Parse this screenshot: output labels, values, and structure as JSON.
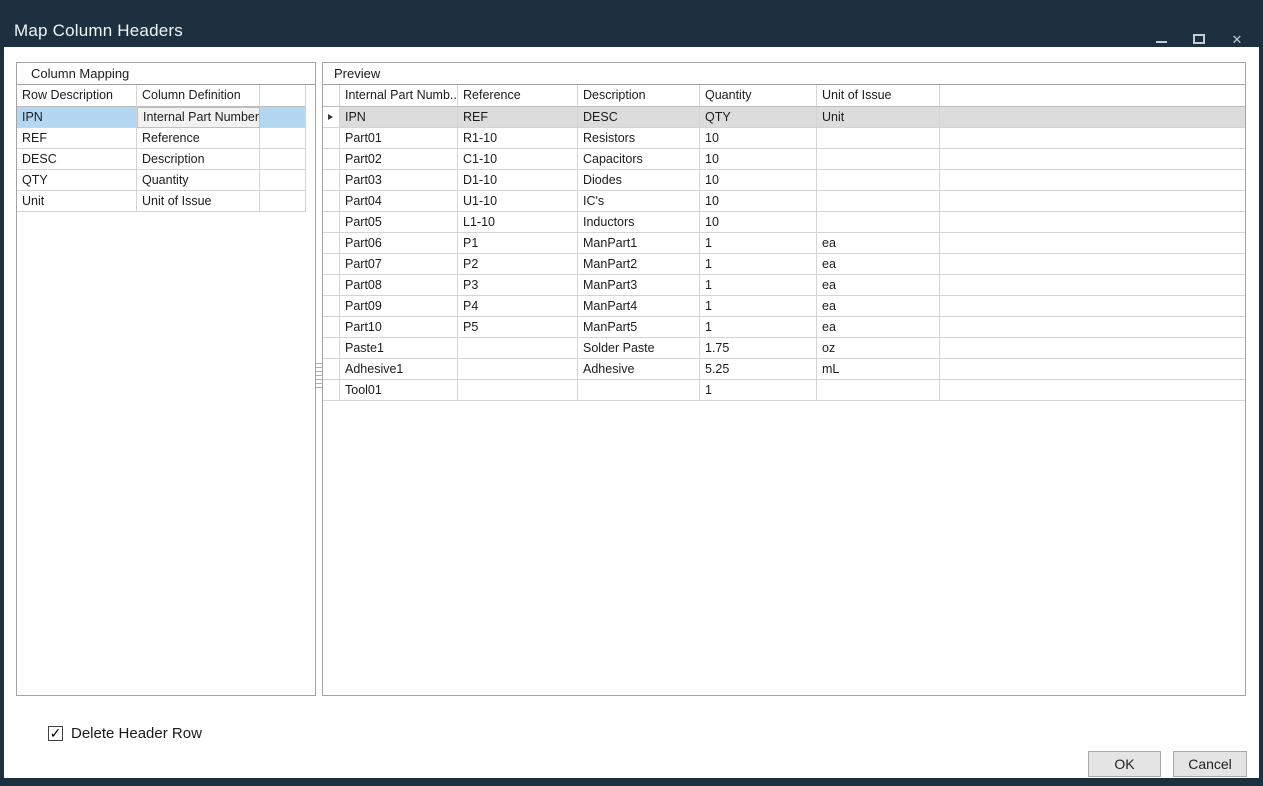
{
  "window": {
    "title": "Map Column Headers"
  },
  "icons": {
    "minimize": "minimize-icon",
    "maximize": "maximize-icon",
    "close": "close-icon",
    "row_current_marker": "row-arrow-icon",
    "checkmark": "checkmark-icon"
  },
  "colors": {
    "titlebar": "#1d303f",
    "title_text": "#f2f4f5",
    "selection_blue": "#b3d7f0",
    "current_row_gray": "#dcdcdc",
    "grid_line": "#d4d4d4",
    "panel_border": "#a3a3a3",
    "button_face": "#e4e4e4"
  },
  "mapping_panel": {
    "title": "Column Mapping",
    "columns": [
      "Row Description",
      "Column Definition"
    ],
    "rows": [
      {
        "row_description": "IPN",
        "column_definition": "Internal Part Number",
        "selected": true
      },
      {
        "row_description": "REF",
        "column_definition": "Reference",
        "selected": false
      },
      {
        "row_description": "DESC",
        "column_definition": "Description",
        "selected": false
      },
      {
        "row_description": "QTY",
        "column_definition": "Quantity",
        "selected": false
      },
      {
        "row_description": "Unit",
        "column_definition": "Unit of Issue",
        "selected": false
      }
    ]
  },
  "preview_panel": {
    "title": "Preview",
    "columns": [
      "Internal Part Numb...",
      "Reference",
      "Description",
      "Quantity",
      "Unit of Issue"
    ],
    "rows": [
      {
        "current": true,
        "cells": [
          "IPN",
          "REF",
          "DESC",
          "QTY",
          "Unit"
        ]
      },
      {
        "current": false,
        "cells": [
          "Part01",
          "R1-10",
          "Resistors",
          "10",
          ""
        ]
      },
      {
        "current": false,
        "cells": [
          "Part02",
          "C1-10",
          "Capacitors",
          "10",
          ""
        ]
      },
      {
        "current": false,
        "cells": [
          "Part03",
          "D1-10",
          "Diodes",
          "10",
          ""
        ]
      },
      {
        "current": false,
        "cells": [
          "Part04",
          "U1-10",
          "IC's",
          "10",
          ""
        ]
      },
      {
        "current": false,
        "cells": [
          "Part05",
          "L1-10",
          "Inductors",
          "10",
          ""
        ]
      },
      {
        "current": false,
        "cells": [
          "Part06",
          "P1",
          "ManPart1",
          "1",
          "ea"
        ]
      },
      {
        "current": false,
        "cells": [
          "Part07",
          "P2",
          "ManPart2",
          "1",
          "ea"
        ]
      },
      {
        "current": false,
        "cells": [
          "Part08",
          "P3",
          "ManPart3",
          "1",
          "ea"
        ]
      },
      {
        "current": false,
        "cells": [
          "Part09",
          "P4",
          "ManPart4",
          "1",
          "ea"
        ]
      },
      {
        "current": false,
        "cells": [
          "Part10",
          "P5",
          "ManPart5",
          "1",
          "ea"
        ]
      },
      {
        "current": false,
        "cells": [
          "Paste1",
          "",
          "Solder Paste",
          "1.75",
          "oz"
        ]
      },
      {
        "current": false,
        "cells": [
          "Adhesive1",
          "",
          "Adhesive",
          "5.25",
          "mL"
        ]
      },
      {
        "current": false,
        "cells": [
          "Tool01",
          "",
          "",
          "1",
          ""
        ]
      }
    ]
  },
  "footer": {
    "checkbox_label": "Delete Header Row",
    "checkbox_checked": true,
    "ok_label": "OK",
    "cancel_label": "Cancel"
  }
}
